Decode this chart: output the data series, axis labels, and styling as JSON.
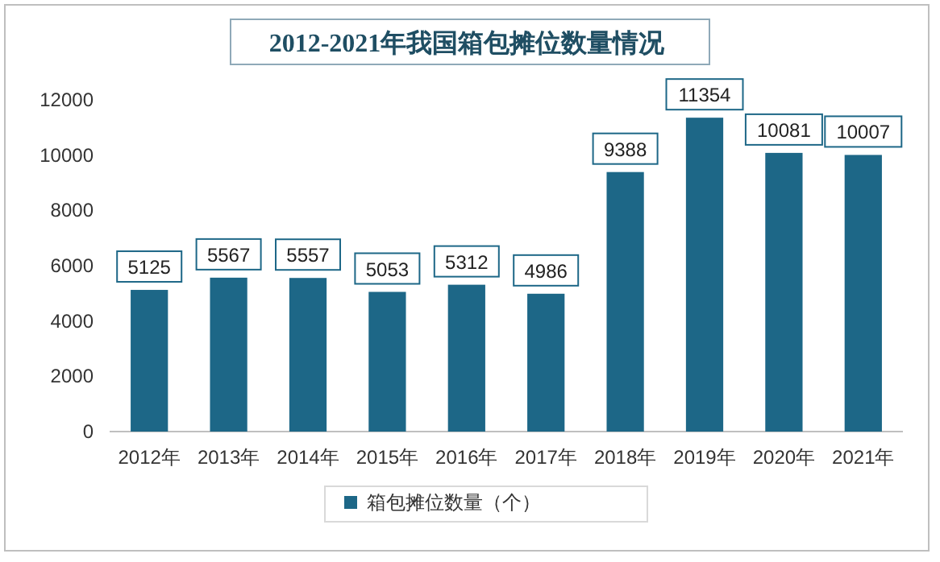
{
  "chart_data": {
    "type": "bar",
    "title": "2012-2021年我国箱包摊位数量情况",
    "categories": [
      "2012年",
      "2013年",
      "2014年",
      "2015年",
      "2016年",
      "2017年",
      "2018年",
      "2019年",
      "2020年",
      "2021年"
    ],
    "series": [
      {
        "name": "箱包摊位数量（个）",
        "color": "#1d6787",
        "values": [
          5125,
          5567,
          5557,
          5053,
          5312,
          4986,
          9388,
          11354,
          10081,
          10007
        ]
      }
    ],
    "ylim": [
      0,
      12000
    ],
    "yticks": [
      0,
      2000,
      4000,
      6000,
      8000,
      10000,
      12000
    ],
    "data_labels": true,
    "legend": "bottom"
  }
}
